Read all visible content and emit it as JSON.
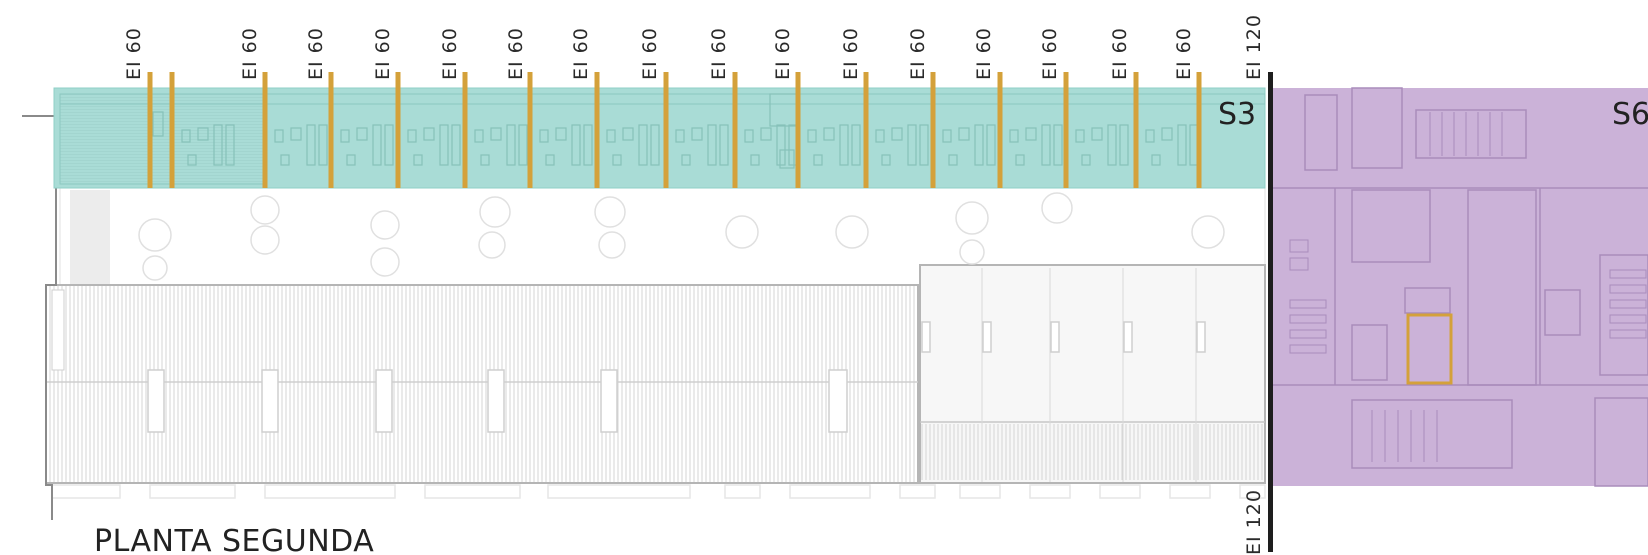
{
  "floor_title": "PLANTA SEGUNDA",
  "sector_labels": [
    "S3",
    "S6"
  ],
  "fire_ratings": {
    "walls": [
      "EI 60",
      "EI 60",
      "EI 60",
      "EI 60",
      "EI 60",
      "EI 60",
      "EI 60",
      "EI 60",
      "EI 60",
      "EI 60",
      "EI 60",
      "EI 60",
      "EI 60",
      "EI 60",
      "EI 60",
      "EI 60"
    ],
    "boundary_top": "EI 120",
    "boundary_bottom": "EI 120"
  },
  "colors": {
    "sector_s3": "#a9dcd6",
    "sector_s6": "#cbb2d8",
    "ei60_wall": "#d4a13a",
    "ei120_wall": "#1e1e1e",
    "linework": "#bdbdbd"
  }
}
